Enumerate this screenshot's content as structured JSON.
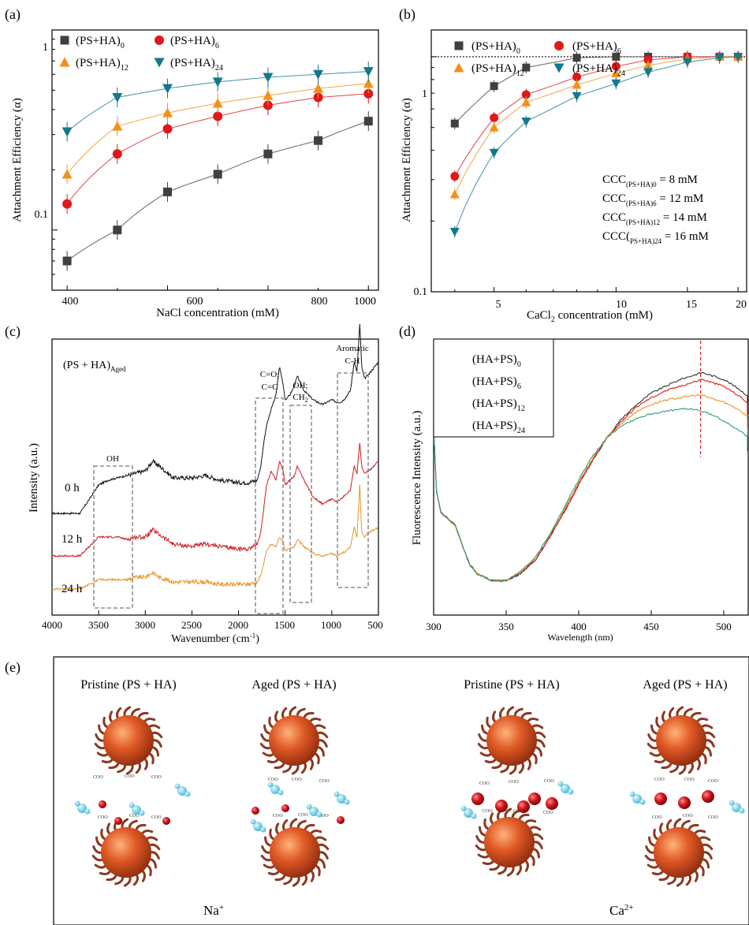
{
  "panels": {
    "a": {
      "label": "(a)",
      "xlabel": "NaCl concentration (mM)",
      "ylabel": "Attachment Efficiency (α)",
      "xticks": [
        "400",
        "600",
        "800",
        "1000"
      ],
      "yticks": [
        "0.1",
        "1"
      ],
      "legend": [
        {
          "base": "(PS+HA)",
          "sub": "0"
        },
        {
          "base": "(PS+HA)",
          "sub": "6"
        },
        {
          "base": "(PS+HA)",
          "sub": "12"
        },
        {
          "base": "(PS+HA)",
          "sub": "24"
        }
      ]
    },
    "b": {
      "label": "(b)",
      "xlabel_base": "CaCl",
      "xlabel_sub": "2",
      "xlabel_rest": " concentration (mM)",
      "ylabel": "Attachment Efficiency (α)",
      "xticks": [
        "5",
        "10",
        "15",
        "20"
      ],
      "yticks": [
        "0.1",
        "1"
      ],
      "legend": [
        {
          "base": "(PS+HA)",
          "sub": "0"
        },
        {
          "base": "(PS+HA)",
          "sub": "6"
        },
        {
          "base": "(PS+HA)",
          "sub": "12"
        },
        {
          "base": "(PS+HA)",
          "sub": "24"
        }
      ],
      "ccc": [
        {
          "pre": "CCC",
          "sub": "(PS+HA)0",
          "post": " = 8 mM"
        },
        {
          "pre": "CCC",
          "sub": "(PS+HA)6",
          "post": " = 12 mM"
        },
        {
          "pre": "CCC",
          "sub": "(PS+HA)12",
          "post": " = 14 mM"
        },
        {
          "pre": "CCC(",
          "sub": "PS+HA)24",
          "post": " = 16 mM"
        }
      ]
    },
    "c": {
      "label": "(c)",
      "title_base": "(PS + HA)",
      "title_sub": "Aged",
      "xlabel": "Wavenumber (cm",
      "xlabel_sup": "-1",
      "xlabel_end": ")",
      "ylabel": "Intensity (a.u.)",
      "xticks": [
        "4000",
        "3500",
        "3000",
        "2500",
        "2000",
        "1500",
        "1000",
        "500"
      ],
      "curve_labels": [
        "0 h",
        "12 h",
        "24 h"
      ],
      "boxes": {
        "oh": "OH",
        "co_1": "C=O;",
        "co_2": "C=C",
        "ch2_1": "OH;",
        "ch2_2": "CH",
        "ch2_sub": "2",
        "arom_1": "Aromatic",
        "arom_2": "C-H"
      }
    },
    "d": {
      "label": "(d)",
      "xlabel": "Wavelength (nm)",
      "ylabel": "Fluorescence Intensity (a.u.)",
      "xticks": [
        "300",
        "350",
        "400",
        "450",
        "500"
      ],
      "legend": [
        {
          "base": "(HA+PS)",
          "sub": "0"
        },
        {
          "base": "(HA+PS)",
          "sub": "6"
        },
        {
          "base": "(HA+PS)",
          "sub": "12"
        },
        {
          "base": "(HA+PS)",
          "sub": "24"
        }
      ]
    },
    "e": {
      "label": "(e)",
      "titles": [
        "Pristine (PS + HA)",
        "Aged (PS + HA)",
        "Pristine (PS + HA)",
        "Aged (PS + HA)"
      ],
      "ion_left_base": "Na",
      "ion_left_sup": "+",
      "ion_right_base": "Ca",
      "ion_right_sup": "2+"
    }
  },
  "colors": {
    "s0": "#404040",
    "s6": "#e0181b",
    "s12": "#f39019",
    "s24": "#13788c",
    "spec24": "#e8962a",
    "fl24": "#2aa17e",
    "particle": "#d9532a",
    "ion": "#c0141a",
    "water": "#59c3dd"
  },
  "chart_data": [
    {
      "panel": "a",
      "type": "scatter",
      "x_scale": "linear",
      "y_scale": "log",
      "xlim": [
        370,
        1020
      ],
      "ylim": [
        0.05,
        1
      ],
      "x": [
        400,
        500,
        600,
        700,
        800,
        900,
        1000
      ],
      "series": [
        {
          "name": "(PS+HA)0",
          "marker": "square",
          "values": [
            0.07,
            0.1,
            0.155,
            0.19,
            0.24,
            0.28,
            0.35
          ]
        },
        {
          "name": "(PS+HA)6",
          "marker": "circle",
          "values": [
            0.135,
            0.24,
            0.32,
            0.37,
            0.42,
            0.46,
            0.48
          ]
        },
        {
          "name": "(PS+HA)12",
          "marker": "triangle-up",
          "values": [
            0.19,
            0.33,
            0.385,
            0.43,
            0.47,
            0.51,
            0.54
          ]
        },
        {
          "name": "(PS+HA)24",
          "marker": "triangle-down",
          "values": [
            0.31,
            0.46,
            0.51,
            0.55,
            0.58,
            0.6,
            0.62
          ]
        }
      ]
    },
    {
      "panel": "b",
      "type": "scatter",
      "x_scale": "log",
      "y_scale": "log",
      "xlim": [
        3.5,
        21
      ],
      "ylim": [
        0.1,
        1.3
      ],
      "reference_line": 1,
      "x": [
        4,
        5,
        6,
        8,
        10,
        12,
        15,
        18,
        20
      ],
      "series": [
        {
          "name": "(PS+HA)0",
          "marker": "square",
          "values": [
            0.52,
            0.75,
            0.9,
            0.99,
            1.0,
            1.0,
            1.0,
            1.0,
            1.0
          ]
        },
        {
          "name": "(PS+HA)6",
          "marker": "circle",
          "values": [
            0.31,
            0.55,
            0.69,
            0.82,
            0.91,
            0.97,
            1.0,
            1.0,
            1.0
          ]
        },
        {
          "name": "(PS+HA)12",
          "marker": "triangle-up",
          "values": [
            0.26,
            0.5,
            0.64,
            0.76,
            0.85,
            0.92,
            0.98,
            1.0,
            1.0
          ]
        },
        {
          "name": "(PS+HA)24",
          "marker": "triangle-down",
          "values": [
            0.18,
            0.39,
            0.53,
            0.68,
            0.77,
            0.86,
            0.95,
            0.99,
            1.0
          ]
        }
      ]
    },
    {
      "panel": "c",
      "type": "line",
      "xlim": [
        4000,
        500
      ],
      "x": [
        4000,
        3700,
        3600,
        3500,
        3400,
        3300,
        3200,
        3100,
        3000,
        2920,
        2850,
        2700,
        2500,
        2350,
        2200,
        2000,
        1900,
        1800,
        1760,
        1730,
        1700,
        1650,
        1600,
        1560,
        1520,
        1500,
        1450,
        1400,
        1370,
        1300,
        1200,
        1100,
        1000,
        950,
        900,
        850,
        800,
        760,
        730,
        700,
        680,
        650,
        600,
        500
      ],
      "series": [
        {
          "name": "0 h",
          "values": [
            0.38,
            0.38,
            0.44,
            0.5,
            0.52,
            0.53,
            0.54,
            0.55,
            0.56,
            0.6,
            0.58,
            0.53,
            0.53,
            0.54,
            0.52,
            0.51,
            0.51,
            0.52,
            0.58,
            0.68,
            0.75,
            0.82,
            0.88,
            1.0,
            0.92,
            0.86,
            0.88,
            0.92,
            0.96,
            0.9,
            0.86,
            0.84,
            0.86,
            0.85,
            0.85,
            0.87,
            0.9,
            1.02,
            0.98,
            1.18,
            1.0,
            0.95,
            0.97,
            1.02
          ]
        },
        {
          "name": "12 h",
          "values": [
            0.2,
            0.2,
            0.24,
            0.28,
            0.28,
            0.28,
            0.27,
            0.28,
            0.28,
            0.31,
            0.29,
            0.25,
            0.24,
            0.25,
            0.24,
            0.23,
            0.23,
            0.25,
            0.3,
            0.4,
            0.5,
            0.56,
            0.52,
            0.6,
            0.56,
            0.5,
            0.52,
            0.54,
            0.58,
            0.52,
            0.45,
            0.42,
            0.44,
            0.43,
            0.44,
            0.46,
            0.48,
            0.58,
            0.55,
            0.68,
            0.58,
            0.55,
            0.56,
            0.6
          ]
        },
        {
          "name": "24 h",
          "values": [
            0.06,
            0.06,
            0.08,
            0.1,
            0.1,
            0.1,
            0.1,
            0.11,
            0.11,
            0.13,
            0.11,
            0.09,
            0.09,
            0.09,
            0.08,
            0.08,
            0.08,
            0.09,
            0.12,
            0.17,
            0.22,
            0.25,
            0.24,
            0.28,
            0.26,
            0.22,
            0.23,
            0.24,
            0.27,
            0.24,
            0.21,
            0.2,
            0.21,
            0.2,
            0.21,
            0.22,
            0.24,
            0.32,
            0.28,
            0.5,
            0.3,
            0.28,
            0.3,
            0.32
          ]
        }
      ]
    },
    {
      "panel": "d",
      "type": "line",
      "xlim": [
        300,
        525
      ],
      "marker_line_x": 484,
      "x": [
        300,
        302,
        305,
        308,
        310,
        315,
        320,
        325,
        330,
        340,
        350,
        360,
        370,
        380,
        390,
        400,
        410,
        420,
        430,
        440,
        450,
        460,
        470,
        480,
        485,
        490,
        500,
        510,
        520,
        525
      ],
      "series": [
        {
          "name": "(HA+PS)0",
          "values": [
            0.7,
            0.42,
            0.33,
            0.31,
            0.3,
            0.27,
            0.18,
            0.1,
            0.06,
            0.03,
            0.03,
            0.06,
            0.12,
            0.22,
            0.33,
            0.45,
            0.56,
            0.66,
            0.74,
            0.8,
            0.85,
            0.88,
            0.91,
            0.93,
            0.94,
            0.93,
            0.91,
            0.87,
            0.82,
            0.8
          ]
        },
        {
          "name": "(HA+PS)6",
          "values": [
            0.7,
            0.42,
            0.33,
            0.31,
            0.3,
            0.27,
            0.18,
            0.1,
            0.06,
            0.03,
            0.03,
            0.06,
            0.12,
            0.22,
            0.33,
            0.45,
            0.56,
            0.66,
            0.73,
            0.79,
            0.83,
            0.86,
            0.88,
            0.9,
            0.91,
            0.9,
            0.88,
            0.84,
            0.79,
            0.76
          ]
        },
        {
          "name": "(HA+PS)12",
          "values": [
            0.7,
            0.42,
            0.33,
            0.31,
            0.3,
            0.27,
            0.18,
            0.1,
            0.06,
            0.03,
            0.03,
            0.07,
            0.13,
            0.23,
            0.34,
            0.46,
            0.57,
            0.66,
            0.72,
            0.77,
            0.8,
            0.82,
            0.83,
            0.84,
            0.84,
            0.83,
            0.81,
            0.78,
            0.73,
            0.7
          ]
        },
        {
          "name": "(HA+PS)24",
          "values": [
            0.7,
            0.42,
            0.33,
            0.31,
            0.3,
            0.27,
            0.18,
            0.1,
            0.06,
            0.03,
            0.03,
            0.07,
            0.13,
            0.23,
            0.35,
            0.47,
            0.58,
            0.66,
            0.71,
            0.74,
            0.76,
            0.77,
            0.78,
            0.78,
            0.77,
            0.76,
            0.73,
            0.69,
            0.64,
            0.6
          ]
        }
      ]
    }
  ]
}
